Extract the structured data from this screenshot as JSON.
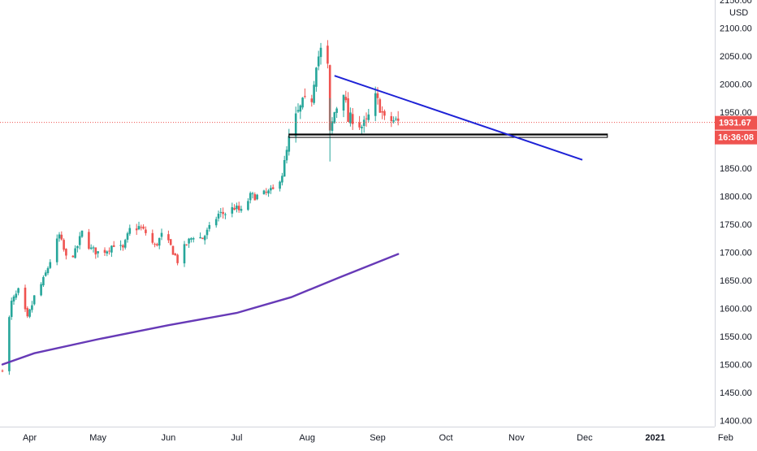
{
  "chart_data": {
    "type": "candlestick",
    "currency": "USD",
    "x_ticks": [
      "Apr",
      "May",
      "Jun",
      "Jul",
      "Aug",
      "Sep",
      "Oct",
      "Nov",
      "Dec",
      "2021",
      "Feb"
    ],
    "y_ticks": [
      "2150.00",
      "2100.00",
      "2050.00",
      "2000.00",
      "1950.00",
      "1900.00",
      "1850.00",
      "1800.00",
      "1750.00",
      "1700.00",
      "1650.00",
      "1600.00",
      "1550.00",
      "1500.00",
      "1450.00",
      "1400.00"
    ],
    "y_range": [
      1395,
      2150
    ],
    "last_price": "1931.67",
    "countdown": "16:36:08",
    "colors": {
      "up": "#26a69a",
      "down": "#ef5350",
      "trendline": "#1e22d6",
      "moving_average": "#673ab7",
      "price_line": "#ef5350",
      "support_box": "#000000"
    },
    "close_points": [
      {
        "date": "2020-03-20",
        "close": 1495
      },
      {
        "date": "2020-03-24",
        "close": 1610
      },
      {
        "date": "2020-03-27",
        "close": 1630
      },
      {
        "date": "2020-03-31",
        "close": 1580
      },
      {
        "date": "2020-04-03",
        "close": 1620
      },
      {
        "date": "2020-04-07",
        "close": 1650
      },
      {
        "date": "2020-04-10",
        "close": 1685
      },
      {
        "date": "2020-04-14",
        "close": 1730
      },
      {
        "date": "2020-04-17",
        "close": 1690
      },
      {
        "date": "2020-04-21",
        "close": 1700
      },
      {
        "date": "2020-04-24",
        "close": 1735
      },
      {
        "date": "2020-04-28",
        "close": 1705
      },
      {
        "date": "2020-05-01",
        "close": 1700
      },
      {
        "date": "2020-05-05",
        "close": 1705
      },
      {
        "date": "2020-05-08",
        "close": 1715
      },
      {
        "date": "2020-05-12",
        "close": 1705
      },
      {
        "date": "2020-05-15",
        "close": 1740
      },
      {
        "date": "2020-05-19",
        "close": 1745
      },
      {
        "date": "2020-05-22",
        "close": 1735
      },
      {
        "date": "2020-05-26",
        "close": 1710
      },
      {
        "date": "2020-05-29",
        "close": 1730
      },
      {
        "date": "2020-06-02",
        "close": 1710
      },
      {
        "date": "2020-06-05",
        "close": 1685
      },
      {
        "date": "2020-06-09",
        "close": 1715
      },
      {
        "date": "2020-06-12",
        "close": 1730
      },
      {
        "date": "2020-06-16",
        "close": 1725
      },
      {
        "date": "2020-06-19",
        "close": 1742
      },
      {
        "date": "2020-06-23",
        "close": 1768
      },
      {
        "date": "2020-06-26",
        "close": 1770
      },
      {
        "date": "2020-06-30",
        "close": 1780
      },
      {
        "date": "2020-07-03",
        "close": 1772
      },
      {
        "date": "2020-07-07",
        "close": 1800
      },
      {
        "date": "2020-07-10",
        "close": 1800
      },
      {
        "date": "2020-07-14",
        "close": 1805
      },
      {
        "date": "2020-07-17",
        "close": 1810
      },
      {
        "date": "2020-07-21",
        "close": 1840
      },
      {
        "date": "2020-07-24",
        "close": 1900
      },
      {
        "date": "2020-07-27",
        "close": 1940
      },
      {
        "date": "2020-07-30",
        "close": 1965
      },
      {
        "date": "2020-08-03",
        "close": 1975
      },
      {
        "date": "2020-08-05",
        "close": 2040
      },
      {
        "date": "2020-08-07",
        "close": 2060
      },
      {
        "date": "2020-08-10",
        "close": 2030
      },
      {
        "date": "2020-08-11",
        "close": 1910
      },
      {
        "date": "2020-08-13",
        "close": 1950
      },
      {
        "date": "2020-08-17",
        "close": 1990
      },
      {
        "date": "2020-08-19",
        "close": 1935
      },
      {
        "date": "2020-08-21",
        "close": 1940
      },
      {
        "date": "2020-08-25",
        "close": 1925
      },
      {
        "date": "2020-08-27",
        "close": 1930
      },
      {
        "date": "2020-08-31",
        "close": 1975
      },
      {
        "date": "2020-09-02",
        "close": 1960
      },
      {
        "date": "2020-09-04",
        "close": 1935
      },
      {
        "date": "2020-09-08",
        "close": 1935
      },
      {
        "date": "2020-09-10",
        "close": 1931.67
      }
    ],
    "moving_average": [
      {
        "date": "2020-03-20",
        "value": 1500
      },
      {
        "date": "2020-04-03",
        "value": 1520
      },
      {
        "date": "2020-05-01",
        "value": 1545
      },
      {
        "date": "2020-06-01",
        "value": 1570
      },
      {
        "date": "2020-07-01",
        "value": 1592
      },
      {
        "date": "2020-07-25",
        "value": 1620
      },
      {
        "date": "2020-08-15",
        "value": 1655
      },
      {
        "date": "2020-09-10",
        "value": 1697
      }
    ],
    "trendline": {
      "start": {
        "date": "2020-08-13",
        "price": 2015
      },
      "end": {
        "date": "2020-11-30",
        "price": 1865
      }
    },
    "support_zone": {
      "start_date": "2020-07-24",
      "end_date": "2020-12-11",
      "top": 1911,
      "bottom": 1905
    }
  }
}
